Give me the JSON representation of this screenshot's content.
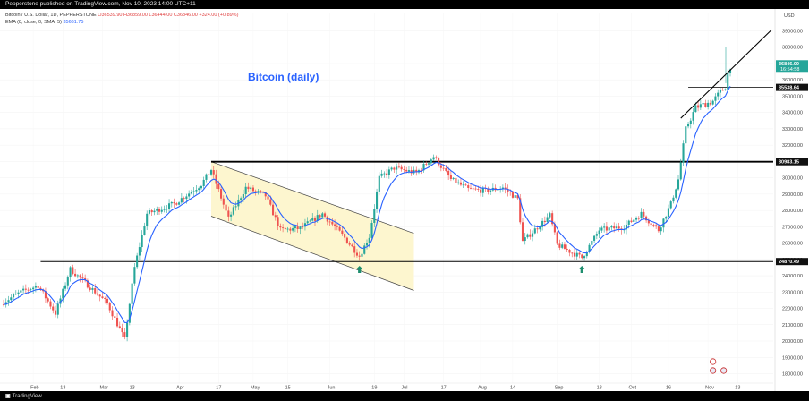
{
  "top_caption": "Pepperstone published on TradingView.com, Nov 10, 2023 14:00 UTC+11",
  "legend": {
    "symbol_line": "Bitcoin / U.S. Dollar, 1D, PEPPERSTONE",
    "ohlc": "O36539.90  H36859.00  L36444.00  C36846.00  +324.00 (+0.89%)",
    "ema_label": "EMA (8, close, 0, SMA, 5)",
    "ema_value": "35661.75"
  },
  "title": "Bitcoin (daily)",
  "logo_text": "TradingView",
  "currency": "USD",
  "colors": {
    "up": "#26a69a",
    "down": "#ef5350",
    "ema": "#2962ff",
    "channel_fill": "#fdf6cf",
    "arrow": "#1e8e6e",
    "level_line": "#000000"
  },
  "price_axis": {
    "ticks": [
      "39000.00",
      "38000.00",
      "37000.00",
      "36000.00",
      "35000.00",
      "34000.00",
      "33000.00",
      "32000.00",
      "31000.00",
      "30000.00",
      "29000.00",
      "28000.00",
      "27000.00",
      "26000.00",
      "25000.00",
      "24000.00",
      "23000.00",
      "22000.00",
      "21000.00",
      "20000.00",
      "19000.00",
      "18000.00"
    ],
    "tick_values": [
      39000,
      38000,
      37000,
      36000,
      35000,
      34000,
      33000,
      32000,
      31000,
      30000,
      29000,
      28000,
      27000,
      26000,
      25000,
      24000,
      23000,
      22000,
      21000,
      20000,
      19000,
      18000
    ]
  },
  "time_axis": {
    "labels": [
      "Feb",
      "13",
      "Mar",
      "13",
      "Apr",
      "17",
      "May",
      "15",
      "Jun",
      "19",
      "Jul",
      "17",
      "Aug",
      "14",
      "Sep",
      "18",
      "Oct",
      "16",
      "Nov",
      "13"
    ]
  },
  "chart_data": {
    "type": "candlestick",
    "title": "Bitcoin (daily)",
    "y_range": [
      17300,
      39800
    ],
    "horizontal_levels": [
      {
        "label": "36846.00",
        "value": 36846,
        "extra_label": "16:54:58",
        "style": "tag"
      },
      {
        "label": "35538.64",
        "value": 35538.64,
        "style": "line"
      },
      {
        "label": "30983.15",
        "value": 30983.15,
        "style": "line"
      },
      {
        "label": "24870.49",
        "value": 24870.49,
        "style": "line"
      }
    ],
    "descending_channel": {
      "upper": [
        [
          "Apr 14",
          30983
        ],
        [
          "Jul 5",
          26600
        ]
      ],
      "lower": [
        [
          "Apr 14",
          27650
        ],
        [
          "Jul 5",
          23100
        ]
      ]
    },
    "rising_trendline": [
      [
        "Oct 21",
        33650
      ],
      [
        "Nov 10",
        36600
      ]
    ],
    "arrows": [
      {
        "date": "Jun 13",
        "direction": "up"
      },
      {
        "date": "Sep 11",
        "direction": "up"
      }
    ],
    "close_path": [
      [
        "Jan 20",
        22400
      ],
      [
        "Jan 27",
        23000
      ],
      [
        "Feb 3",
        23400
      ],
      [
        "Feb 10",
        21700
      ],
      [
        "Feb 16",
        24400
      ],
      [
        "Feb 24",
        23300
      ],
      [
        "Mar 3",
        22300
      ],
      [
        "Mar 10",
        20100
      ],
      [
        "Mar 14",
        24500
      ],
      [
        "Mar 19",
        27800
      ],
      [
        "Mar 30",
        28400
      ],
      [
        "Apr 10",
        29600
      ],
      [
        "Apr 14",
        30500
      ],
      [
        "Apr 21",
        27500
      ],
      [
        "Apr 28",
        29400
      ],
      [
        "May 6",
        28900
      ],
      [
        "May 12",
        26800
      ],
      [
        "May 20",
        26900
      ],
      [
        "May 29",
        27800
      ],
      [
        "Jun 6",
        26500
      ],
      [
        "Jun 13",
        25200
      ],
      [
        "Jun 17",
        26400
      ],
      [
        "Jun 21",
        30000
      ],
      [
        "Jun 27",
        30600
      ],
      [
        "Jul 6",
        30300
      ],
      [
        "Jul 13",
        31300
      ],
      [
        "Jul 20",
        29900
      ],
      [
        "Jul 27",
        29300
      ],
      [
        "Aug 3",
        29200
      ],
      [
        "Aug 10",
        29400
      ],
      [
        "Aug 16",
        28700
      ],
      [
        "Aug 18",
        26100
      ],
      [
        "Aug 29",
        27700
      ],
      [
        "Sep 1",
        25900
      ],
      [
        "Sep 11",
        25100
      ],
      [
        "Sep 18",
        26800
      ],
      [
        "Sep 28",
        27000
      ],
      [
        "Oct 5",
        27800
      ],
      [
        "Oct 12",
        26800
      ],
      [
        "Oct 17",
        28400
      ],
      [
        "Oct 20",
        29900
      ],
      [
        "Oct 23",
        33000
      ],
      [
        "Oct 27",
        34300
      ],
      [
        "Nov 3",
        34700
      ],
      [
        "Nov 8",
        35600
      ],
      [
        "Nov 9",
        36400
      ],
      [
        "Nov 10",
        36846
      ]
    ]
  }
}
